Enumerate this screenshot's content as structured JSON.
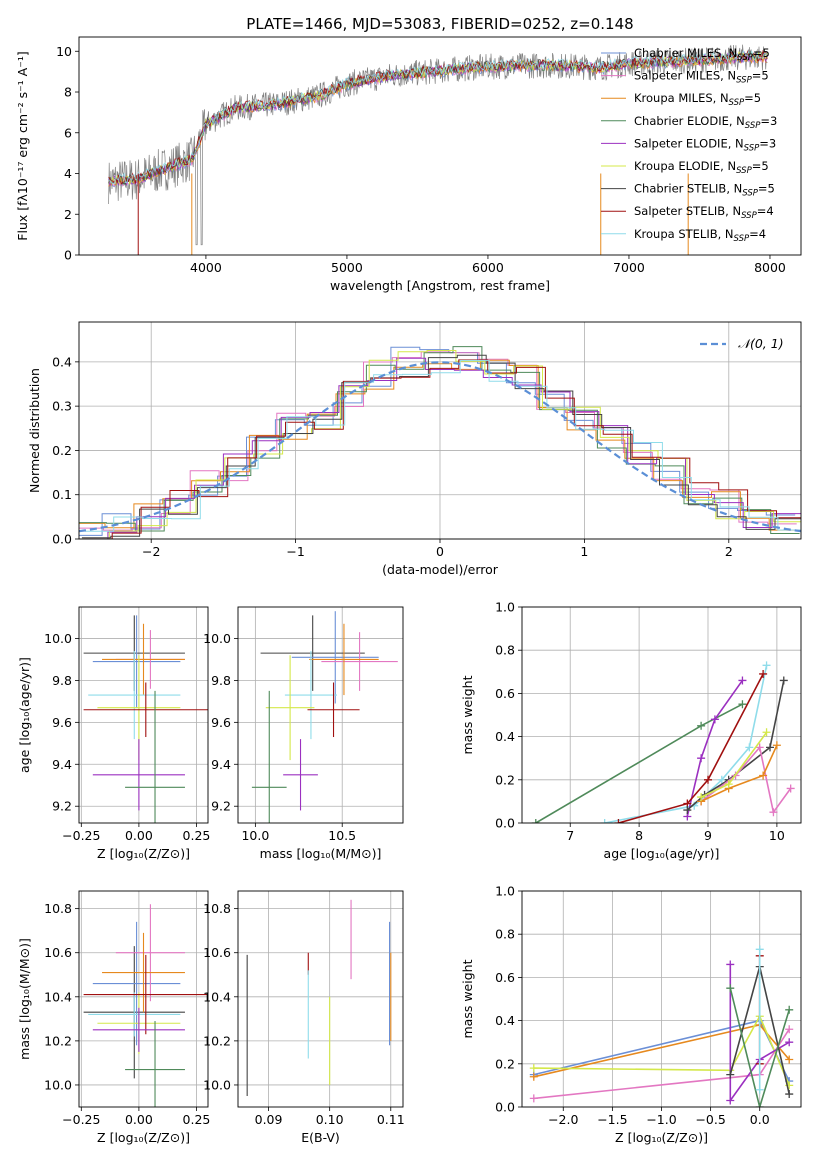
{
  "title": "PLATE=1466, MJD=53083, FIBERID=0252, z=0.148",
  "legend_entries": [
    {
      "label": "Chabrier MILES, N",
      "sub": "SSP",
      "suffix": "=5",
      "color": "#6b8fd6"
    },
    {
      "label": "Salpeter MILES, N",
      "sub": "SSP",
      "suffix": "=5",
      "color": "#e377c2"
    },
    {
      "label": "Kroupa MILES, N",
      "sub": "SSP",
      "suffix": "=5",
      "color": "#e6891e"
    },
    {
      "label": "Chabrier ELODIE, N",
      "sub": "SSP",
      "suffix": "=3",
      "color": "#4f8a5a"
    },
    {
      "label": "Salpeter ELODIE, N",
      "sub": "SSP",
      "suffix": "=3",
      "color": "#9b30c0"
    },
    {
      "label": "Kroupa ELODIE, N",
      "sub": "SSP",
      "suffix": "=5",
      "color": "#d4e84a"
    },
    {
      "label": "Chabrier STELIB, N",
      "sub": "SSP",
      "suffix": "=5",
      "color": "#444444"
    },
    {
      "label": "Salpeter STELIB, N",
      "sub": "SSP",
      "suffix": "=4",
      "color": "#a01010"
    },
    {
      "label": "Kroupa STELIB, N",
      "sub": "SSP",
      "suffix": "=4",
      "color": "#8fdcea"
    }
  ],
  "chart_data": [
    {
      "type": "line",
      "name": "spectrum",
      "xlabel": "wavelength [Angstrom, rest frame]",
      "ylabel": "Flux [fλ10⁻¹⁷ erg cm⁻² s⁻¹ A⁻¹]",
      "xlim": [
        3100,
        8220
      ],
      "ylim": [
        0,
        10.7
      ],
      "xticks": [
        "4000",
        "5000",
        "6000",
        "7000",
        "8000"
      ],
      "yticks": [
        "0",
        "2",
        "4",
        "6",
        "8",
        "10"
      ],
      "data_x": [
        3300,
        3500,
        3700,
        3900,
        4000,
        4200,
        4500,
        4800,
        5000,
        5300,
        5600,
        5900,
        6200,
        6500,
        6800,
        7000,
        7300,
        7600,
        7800,
        7950
      ],
      "data_y": [
        3.6,
        3.7,
        4.2,
        4.7,
        6.4,
        7.2,
        7.4,
        7.8,
        8.4,
        8.8,
        9.0,
        9.2,
        9.3,
        9.3,
        9.2,
        9.4,
        9.5,
        9.6,
        9.7,
        9.7
      ],
      "grid": false,
      "legend_position": "top-right"
    },
    {
      "type": "line",
      "name": "residual histogram",
      "xlabel": "(data-model)/error",
      "ylabel": "Normed distribution",
      "xlim": [
        -2.5,
        2.5
      ],
      "ylim": [
        0,
        0.49
      ],
      "xticks": [
        "−2",
        "−1",
        "0",
        "1",
        "2"
      ],
      "yticks": [
        "0.0",
        "0.1",
        "0.2",
        "0.3",
        "0.4"
      ],
      "legend": "𝒩(0, 1)",
      "grid": true,
      "legend_position": "top-right",
      "hist_bins": [
        -2.5,
        -2.3,
        -2.1,
        -1.9,
        -1.7,
        -1.5,
        -1.3,
        -1.1,
        -0.9,
        -0.7,
        -0.5,
        -0.3,
        -0.1,
        0.1,
        0.3,
        0.5,
        0.7,
        0.9,
        1.1,
        1.3,
        1.5,
        1.7,
        1.9,
        2.1,
        2.3,
        2.5
      ],
      "hist_values": [
        0.025,
        0.03,
        0.05,
        0.08,
        0.12,
        0.16,
        0.2,
        0.25,
        0.28,
        0.33,
        0.37,
        0.4,
        0.41,
        0.41,
        0.39,
        0.36,
        0.32,
        0.28,
        0.24,
        0.19,
        0.15,
        0.11,
        0.08,
        0.05,
        0.03
      ]
    },
    {
      "type": "scatter",
      "name": "age vs Z",
      "xlabel": "Z [log₁₀(Z/Z⊙)]",
      "ylabel": "age  [log₁₀(age/yr)]",
      "xlim": [
        -0.26,
        0.3
      ],
      "ylim": [
        9.12,
        10.15
      ],
      "xticks": [
        "−0.25",
        "0.00",
        "0.25"
      ],
      "yticks": [
        "9.2",
        "9.4",
        "9.6",
        "9.8",
        "10.0"
      ],
      "grid": true,
      "points": [
        {
          "x": -0.02,
          "y": 9.93,
          "xerr": 0.22,
          "yerr": 0.18,
          "color": "#444444"
        },
        {
          "x": -0.01,
          "y": 9.89,
          "xerr": 0.19,
          "yerr": 0.22,
          "color": "#6b8fd6"
        },
        {
          "x": 0.05,
          "y": 9.9,
          "xerr": 0.15,
          "yerr": 0.14,
          "color": "#e377c2"
        },
        {
          "x": 0.02,
          "y": 9.9,
          "xerr": 0.18,
          "yerr": 0.17,
          "color": "#e6891e"
        },
        {
          "x": -0.02,
          "y": 9.73,
          "xerr": 0.2,
          "yerr": 0.21,
          "color": "#8fdcea"
        },
        {
          "x": 0.0,
          "y": 9.67,
          "xerr": 0.18,
          "yerr": 0.25,
          "color": "#d4e84a"
        },
        {
          "x": 0.03,
          "y": 9.66,
          "xerr": 0.27,
          "yerr": 0.13,
          "color": "#a01010"
        },
        {
          "x": 0.0,
          "y": 9.35,
          "xerr": 0.2,
          "yerr": 0.17,
          "color": "#9b30c0"
        },
        {
          "x": 0.07,
          "y": 9.29,
          "xerr": 0.13,
          "yerr": 0.46,
          "color": "#4f8a5a"
        }
      ]
    },
    {
      "type": "scatter",
      "name": "age vs mass",
      "xlabel": "mass [log₁₀(M/M⊙)]",
      "ylabel": "",
      "xlim": [
        9.9,
        10.85
      ],
      "ylim": [
        9.12,
        10.15
      ],
      "xticks": [
        "10.0",
        "10.5"
      ],
      "yticks": [
        "9.2",
        "9.4",
        "9.6",
        "9.8",
        "10.0"
      ],
      "grid": true,
      "points": [
        {
          "x": 10.33,
          "y": 9.93,
          "xerr": 0.3,
          "yerr": 0.18,
          "color": "#444444"
        },
        {
          "x": 10.46,
          "y": 9.91,
          "xerr": 0.25,
          "yerr": 0.22,
          "color": "#6b8fd6"
        },
        {
          "x": 10.6,
          "y": 9.89,
          "xerr": 0.22,
          "yerr": 0.14,
          "color": "#e377c2"
        },
        {
          "x": 10.51,
          "y": 9.9,
          "xerr": 0.2,
          "yerr": 0.17,
          "color": "#e6891e"
        },
        {
          "x": 10.32,
          "y": 9.73,
          "xerr": 0.15,
          "yerr": 0.21,
          "color": "#8fdcea"
        },
        {
          "x": 10.2,
          "y": 9.67,
          "xerr": 0.14,
          "yerr": 0.25,
          "color": "#d4e84a"
        },
        {
          "x": 10.45,
          "y": 9.66,
          "xerr": 0.15,
          "yerr": 0.13,
          "color": "#a01010"
        },
        {
          "x": 10.26,
          "y": 9.35,
          "xerr": 0.1,
          "yerr": 0.17,
          "color": "#9b30c0"
        },
        {
          "x": 10.08,
          "y": 9.29,
          "xerr": 0.1,
          "yerr": 0.46,
          "color": "#4f8a5a"
        }
      ]
    },
    {
      "type": "line",
      "name": "mass weight vs age",
      "xlabel": "age  [log₁₀(age/yr)]",
      "ylabel": "mass weight",
      "xlim": [
        6.3,
        10.35
      ],
      "ylim": [
        0,
        1.0
      ],
      "xticks": [
        "7",
        "8",
        "9",
        "10"
      ],
      "yticks": [
        "0.0",
        "0.2",
        "0.4",
        "0.6",
        "0.8",
        "1.0"
      ],
      "grid": true,
      "series": [
        {
          "color": "#4f8a5a",
          "x": [
            6.5,
            8.9,
            9.5
          ],
          "y": [
            0.0,
            0.45,
            0.55
          ]
        },
        {
          "color": "#8fdcea",
          "x": [
            7.5,
            8.8,
            9.2,
            9.6,
            9.85
          ],
          "y": [
            0.0,
            0.08,
            0.2,
            0.35,
            0.73
          ]
        },
        {
          "color": "#9b30c0",
          "x": [
            8.7,
            8.9,
            9.1,
            9.5
          ],
          "y": [
            0.03,
            0.3,
            0.48,
            0.66
          ]
        },
        {
          "color": "#a01010",
          "x": [
            7.7,
            8.7,
            9.0,
            9.8
          ],
          "y": [
            0.0,
            0.09,
            0.2,
            0.69
          ]
        },
        {
          "color": "#444444",
          "x": [
            8.7,
            8.95,
            9.3,
            9.9,
            10.1
          ],
          "y": [
            0.06,
            0.13,
            0.2,
            0.35,
            0.66
          ]
        },
        {
          "color": "#e377c2",
          "x": [
            8.9,
            9.4,
            9.75,
            9.95,
            10.2
          ],
          "y": [
            0.1,
            0.22,
            0.35,
            0.05,
            0.16
          ]
        },
        {
          "color": "#e6891e",
          "x": [
            8.9,
            9.3,
            9.8,
            10.0
          ],
          "y": [
            0.1,
            0.16,
            0.22,
            0.36
          ]
        },
        {
          "color": "#d4e84a",
          "x": [
            8.9,
            9.3,
            9.85
          ],
          "y": [
            0.12,
            0.18,
            0.42
          ]
        }
      ]
    },
    {
      "type": "scatter",
      "name": "mass vs Z",
      "xlabel": "Z [log₁₀(Z/Z⊙)]",
      "ylabel": "mass [log₁₀(M/M⊙)]",
      "xlim": [
        -0.26,
        0.3
      ],
      "ylim": [
        9.9,
        10.88
      ],
      "xticks": [
        "−0.25",
        "0.00",
        "0.25"
      ],
      "yticks": [
        "10.0",
        "10.2",
        "10.4",
        "10.6",
        "10.8"
      ],
      "grid": true,
      "points": [
        {
          "x": -0.02,
          "y": 10.33,
          "xerr": 0.22,
          "yerr": 0.3,
          "color": "#444444"
        },
        {
          "x": -0.01,
          "y": 10.46,
          "xerr": 0.19,
          "yerr": 0.28,
          "color": "#6b8fd6"
        },
        {
          "x": 0.05,
          "y": 10.6,
          "xerr": 0.15,
          "yerr": 0.22,
          "color": "#e377c2"
        },
        {
          "x": 0.02,
          "y": 10.51,
          "xerr": 0.18,
          "yerr": 0.18,
          "color": "#e6891e"
        },
        {
          "x": -0.02,
          "y": 10.32,
          "xerr": 0.2,
          "yerr": 0.1,
          "color": "#8fdcea"
        },
        {
          "x": 0.0,
          "y": 10.28,
          "xerr": 0.18,
          "yerr": 0.14,
          "color": "#d4e84a"
        },
        {
          "x": 0.03,
          "y": 10.41,
          "xerr": 0.27,
          "yerr": 0.18,
          "color": "#a01010"
        },
        {
          "x": 0.0,
          "y": 10.25,
          "xerr": 0.2,
          "yerr": 0.1,
          "color": "#9b30c0"
        },
        {
          "x": 0.07,
          "y": 10.07,
          "xerr": 0.13,
          "yerr": 0.22,
          "color": "#4f8a5a"
        }
      ]
    },
    {
      "type": "scatter",
      "name": "mass vs E(B-V)",
      "xlabel": "E(B-V)",
      "ylabel": "",
      "xlim": [
        0.085,
        0.112
      ],
      "ylim": [
        9.9,
        10.88
      ],
      "xticks": [
        "0.09",
        "0.10",
        "0.11"
      ],
      "yticks": [
        "10.0",
        "10.2",
        "10.4",
        "10.6",
        "10.8"
      ],
      "grid": true,
      "points": [
        {
          "x": 0.0865,
          "y": 10.27,
          "yerr": 0.32,
          "color": "#444444"
        },
        {
          "x": 0.0965,
          "y": 10.55,
          "yerr": 0.05,
          "color": "#a01010"
        },
        {
          "x": 0.0965,
          "y": 10.32,
          "yerr": 0.2,
          "color": "#8fdcea"
        },
        {
          "x": 0.1,
          "y": 10.2,
          "yerr": 0.2,
          "color": "#d4e84a"
        },
        {
          "x": 0.1035,
          "y": 10.66,
          "yerr": 0.18,
          "color": "#e377c2"
        },
        {
          "x": 0.1098,
          "y": 10.46,
          "yerr": 0.28,
          "color": "#6b8fd6"
        },
        {
          "x": 0.11,
          "y": 10.4,
          "yerr": 0.2,
          "color": "#e6891e"
        }
      ]
    },
    {
      "type": "line",
      "name": "mass weight vs Z",
      "xlabel": "Z [log₁₀(Z/Z⊙)]",
      "ylabel": "mass weight",
      "xlim": [
        -2.42,
        0.42
      ],
      "ylim": [
        0,
        1.0
      ],
      "xticks": [
        "−2.0",
        "−1.5",
        "−1.0",
        "−0.5",
        "0.0"
      ],
      "yticks": [
        "0.0",
        "0.2",
        "0.4",
        "0.6",
        "0.8",
        "1.0"
      ],
      "grid": true,
      "series": [
        {
          "color": "#6b8fd6",
          "x": [
            -2.3,
            0.0,
            0.3
          ],
          "y": [
            0.15,
            0.4,
            0.12
          ]
        },
        {
          "color": "#e6891e",
          "x": [
            -2.3,
            0.0,
            0.3
          ],
          "y": [
            0.14,
            0.38,
            0.22
          ]
        },
        {
          "color": "#e377c2",
          "x": [
            -2.3,
            0.0,
            0.3
          ],
          "y": [
            0.04,
            0.15,
            0.36
          ]
        },
        {
          "color": "#d4e84a",
          "x": [
            -2.3,
            -0.3,
            0.0,
            0.3
          ],
          "y": [
            0.18,
            0.17,
            0.42,
            0.1
          ]
        },
        {
          "color": "#9b30c0",
          "x": [
            -0.3,
            -0.3,
            0.0,
            0.3
          ],
          "y": [
            0.66,
            0.03,
            0.22,
            0.3
          ]
        },
        {
          "color": "#444444",
          "x": [
            -0.3,
            0.0,
            0.3
          ],
          "y": [
            0.15,
            0.65,
            0.06
          ]
        },
        {
          "color": "#4f8a5a",
          "x": [
            -0.3,
            0.0,
            0.3
          ],
          "y": [
            0.55,
            0.0,
            0.45
          ]
        },
        {
          "color": "#a01010",
          "x": [
            0.0,
            0.0
          ],
          "y": [
            0.7,
            0.2
          ]
        },
        {
          "color": "#8fdcea",
          "x": [
            0.0,
            0.0
          ],
          "y": [
            0.73,
            0.08
          ]
        }
      ]
    }
  ]
}
